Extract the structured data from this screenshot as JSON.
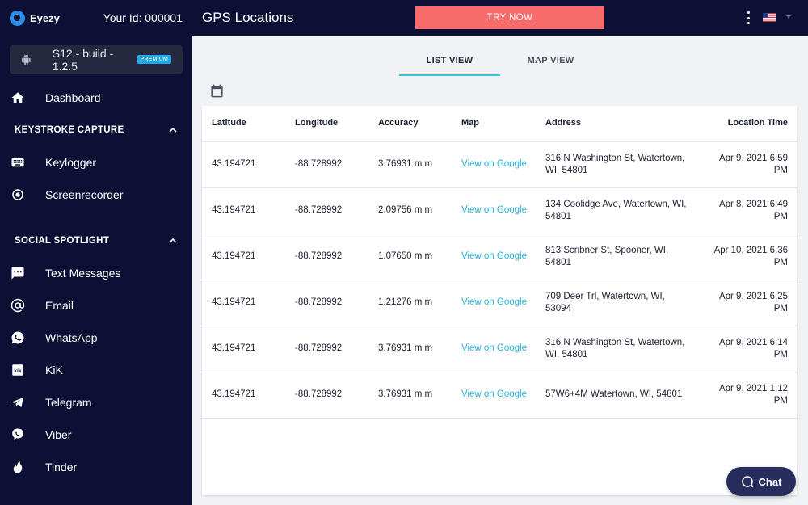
{
  "brand": {
    "name": "Eyezy",
    "user_id_label": "Your Id: 000001"
  },
  "device": {
    "label": "S12 - build - 1.2.5",
    "badge": "PREMIUM"
  },
  "sidebar": {
    "dashboard": "Dashboard",
    "sections": [
      {
        "title": "KEYSTROKE CAPTURE",
        "items": [
          "Keylogger",
          "Screenrecorder"
        ]
      },
      {
        "title": "SOCIAL SPOTLIGHT",
        "items": [
          "Text Messages",
          "Email",
          "WhatsApp",
          "KiK",
          "Telegram",
          "Viber",
          "Tinder"
        ]
      }
    ]
  },
  "header": {
    "title": "GPS Locations",
    "cta": "TRY NOW"
  },
  "tabs": [
    "LIST VIEW",
    "MAP VIEW"
  ],
  "table": {
    "columns": [
      "Latitude",
      "Longitude",
      "Accuracy",
      "Map",
      "Address",
      "Location Time"
    ],
    "rows": [
      {
        "lat": "43.194721",
        "lng": "-88.728992",
        "acc": "3.76931 m m",
        "map": "View on Google",
        "addr": "316 N Washington St, Watertown, WI, 54801",
        "time": "Apr 9, 2021 6:59 PM"
      },
      {
        "lat": "43.194721",
        "lng": "-88.728992",
        "acc": "2.09756 m m",
        "map": "View on Google",
        "addr": "134 Coolidge Ave, Watertown, WI, 54801",
        "time": "Apr 8, 2021 6:49 PM"
      },
      {
        "lat": "43.194721",
        "lng": "-88.728992",
        "acc": "1.07650 m m",
        "map": "View on Google",
        "addr": "813 Scribner St, Spooner, WI, 54801",
        "time": "Apr 10, 2021 6:36 PM"
      },
      {
        "lat": "43.194721",
        "lng": "-88.728992",
        "acc": "1.21276 m m",
        "map": "View on Google",
        "addr": "709 Deer Trl, Watertown, WI, 53094",
        "time": "Apr 9, 2021 6:25 PM"
      },
      {
        "lat": "43.194721",
        "lng": "-88.728992",
        "acc": "3.76931 m m",
        "map": "View on Google",
        "addr": "316 N Washington St, Watertown, WI, 54801",
        "time": "Apr 9, 2021 6:14 PM"
      },
      {
        "lat": "43.194721",
        "lng": "-88.728992",
        "acc": "3.76931 m m",
        "map": "View on Google",
        "addr": "57W6+4M Watertown, WI, 54801",
        "time": "Apr 9, 2021 1:12 PM"
      }
    ]
  },
  "chat": {
    "label": "Chat"
  },
  "colors": {
    "sidebar_bg": "#0b1034",
    "accent": "#37c5dc",
    "cta": "#f76b6b",
    "link": "#2ab0d8"
  }
}
